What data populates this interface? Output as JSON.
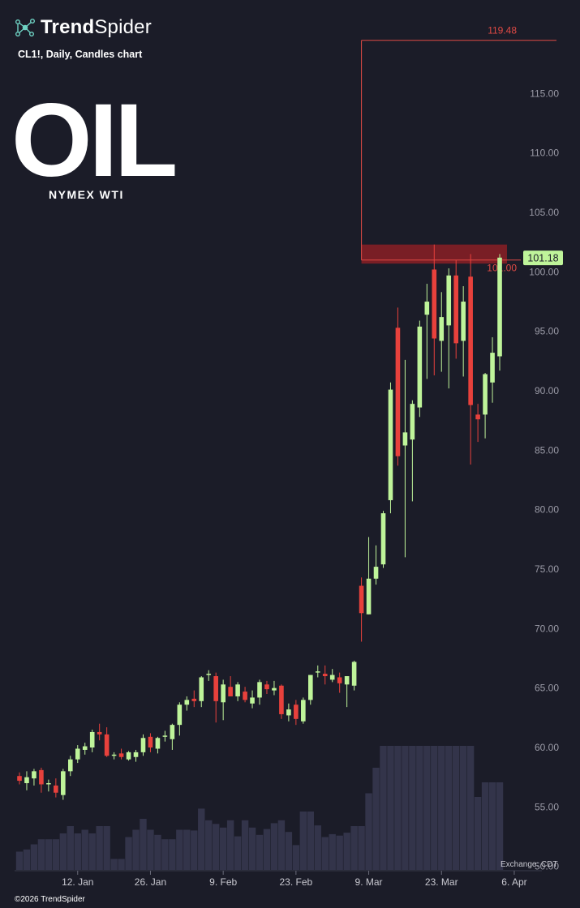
{
  "brand": {
    "name_bold": "Trend",
    "name_light": "Spider",
    "logo_icon": "network-nodes-icon"
  },
  "subtitle": "CL1!, Daily, Candles chart",
  "title": "OIL",
  "title_sub": "NYMEX WTI",
  "copyright": "©2026 TrendSpider",
  "exchange": "Exchange: CDT",
  "colors": {
    "background": "#1b1c28",
    "up": "#bff49a",
    "down": "#e8413c",
    "volume": "#33344a",
    "zone": "#8a1f24",
    "level_line": "#e04a45",
    "price_tag": "#bff49a"
  },
  "chart_data": {
    "type": "candlestick",
    "symbol": "CL1!",
    "interval": "Daily",
    "ylim": [
      49.5,
      119.8
    ],
    "y_ticks": [
      "50.00",
      "55.00",
      "60.00",
      "65.00",
      "70.00",
      "75.00",
      "80.00",
      "85.00",
      "90.00",
      "95.00",
      "100.00",
      "105.00",
      "110.00",
      "115.00"
    ],
    "x_ticks": [
      "12. Jan",
      "26. Jan",
      "9. Feb",
      "23. Feb",
      "9. Mar",
      "23. Mar",
      "6. Apr"
    ],
    "x_tick_index": [
      8,
      18,
      28,
      38,
      48,
      58,
      68
    ],
    "last_price": "101.18",
    "levels": [
      {
        "label": "119.48",
        "value": 119.48
      },
      {
        "label": "101.00",
        "value": 101.0
      }
    ],
    "zone": {
      "from": 100.7,
      "to": 102.3,
      "start_index": 47,
      "end_index": 67
    },
    "vertical_marker_index": 47,
    "candles": [
      [
        57.6,
        57.9,
        56.9,
        57.2,
        0.25
      ],
      [
        57.0,
        58.0,
        56.4,
        57.5,
        0.28
      ],
      [
        57.4,
        58.2,
        56.8,
        58.0,
        0.35
      ],
      [
        58.1,
        58.3,
        56.2,
        56.9,
        0.42
      ],
      [
        56.9,
        57.3,
        56.3,
        57.0,
        0.42
      ],
      [
        56.8,
        57.4,
        55.8,
        56.2,
        0.42
      ],
      [
        56.0,
        58.2,
        55.6,
        58.0,
        0.5
      ],
      [
        58.0,
        59.3,
        57.6,
        59.0,
        0.6
      ],
      [
        59.0,
        60.2,
        58.7,
        59.9,
        0.5
      ],
      [
        59.8,
        60.4,
        59.4,
        60.1,
        0.55
      ],
      [
        60.0,
        61.5,
        59.6,
        61.3,
        0.5
      ],
      [
        61.3,
        62.0,
        60.6,
        61.1,
        0.6
      ],
      [
        61.1,
        61.7,
        59.2,
        59.3,
        0.6
      ],
      [
        59.3,
        59.6,
        59.0,
        59.4,
        0.15
      ],
      [
        59.5,
        59.9,
        59.0,
        59.2,
        0.15
      ],
      [
        59.0,
        59.7,
        58.9,
        59.6,
        0.45
      ],
      [
        59.2,
        59.8,
        58.8,
        59.6,
        0.55
      ],
      [
        59.6,
        61.1,
        59.3,
        60.8,
        0.7
      ],
      [
        60.9,
        61.2,
        59.6,
        60.0,
        0.55
      ],
      [
        59.9,
        60.9,
        59.5,
        60.8,
        0.48
      ],
      [
        60.9,
        61.4,
        60.5,
        61.0,
        0.42
      ],
      [
        60.7,
        62.0,
        59.8,
        61.9,
        0.42
      ],
      [
        61.9,
        63.8,
        61.0,
        63.6,
        0.55
      ],
      [
        63.6,
        64.3,
        63.1,
        64.0,
        0.55
      ],
      [
        64.1,
        64.8,
        63.4,
        63.9,
        0.54
      ],
      [
        63.9,
        66.0,
        63.4,
        65.9,
        0.84
      ],
      [
        66.1,
        66.5,
        65.6,
        66.2,
        0.68
      ],
      [
        66.0,
        66.3,
        62.1,
        63.9,
        0.63
      ],
      [
        63.8,
        65.7,
        62.3,
        65.3,
        0.58
      ],
      [
        65.1,
        66.0,
        64.4,
        64.3,
        0.68
      ],
      [
        64.3,
        65.5,
        63.9,
        65.3,
        0.46
      ],
      [
        64.7,
        65.1,
        63.8,
        64.0,
        0.68
      ],
      [
        63.7,
        64.8,
        63.3,
        64.2,
        0.58
      ],
      [
        64.2,
        65.7,
        63.6,
        65.5,
        0.48
      ],
      [
        65.3,
        65.6,
        64.5,
        64.9,
        0.56
      ],
      [
        64.8,
        65.6,
        64.4,
        65.0,
        0.64
      ],
      [
        65.2,
        65.3,
        62.4,
        62.8,
        0.68
      ],
      [
        62.7,
        63.7,
        62.2,
        63.2,
        0.52
      ],
      [
        63.6,
        64.0,
        61.9,
        62.4,
        0.34
      ],
      [
        62.2,
        64.2,
        62.0,
        64.0,
        0.8
      ],
      [
        64.0,
        66.1,
        63.6,
        66.1,
        0.8
      ],
      [
        66.3,
        66.9,
        65.9,
        66.4,
        0.61
      ],
      [
        66.2,
        66.9,
        65.3,
        66.0,
        0.45
      ],
      [
        65.7,
        66.6,
        65.5,
        66.1,
        0.49
      ],
      [
        65.9,
        66.3,
        64.6,
        65.4,
        0.47
      ],
      [
        65.3,
        66.0,
        63.4,
        66.0,
        0.51
      ],
      [
        65.2,
        67.3,
        64.8,
        67.2,
        0.6
      ],
      [
        73.6,
        74.3,
        68.9,
        71.3,
        0.6
      ],
      [
        71.2,
        77.7,
        71.2,
        74.2,
        1.05
      ],
      [
        74.2,
        77.0,
        73.7,
        75.2,
        1.4
      ],
      [
        75.4,
        79.9,
        75.1,
        79.7,
        1.7
      ],
      [
        80.8,
        90.7,
        79.7,
        90.1,
        1.7
      ],
      [
        95.3,
        97.0,
        83.7,
        84.5,
        1.7
      ],
      [
        85.4,
        92.6,
        76.0,
        86.5,
        1.7
      ],
      [
        85.9,
        89.2,
        80.7,
        88.9,
        1.7
      ],
      [
        88.6,
        95.9,
        87.8,
        95.4,
        1.7
      ],
      [
        96.4,
        99.0,
        91.0,
        97.5,
        1.7
      ],
      [
        100.2,
        102.3,
        91.3,
        94.4,
        1.7
      ],
      [
        94.2,
        98.3,
        91.6,
        96.2,
        1.7
      ],
      [
        95.5,
        100.3,
        90.2,
        99.7,
        1.7
      ],
      [
        99.7,
        101.0,
        92.7,
        94.0,
        1.7
      ],
      [
        94.2,
        98.8,
        91.2,
        97.5,
        1.7
      ],
      [
        99.6,
        101.5,
        83.8,
        88.8,
        1.7
      ],
      [
        88.0,
        88.9,
        85.7,
        87.6,
        1.0
      ],
      [
        88.0,
        91.5,
        86.0,
        91.4,
        1.2
      ],
      [
        90.7,
        94.5,
        89.0,
        93.2,
        1.2
      ],
      [
        92.9,
        101.5,
        91.7,
        101.2,
        1.2
      ]
    ]
  }
}
